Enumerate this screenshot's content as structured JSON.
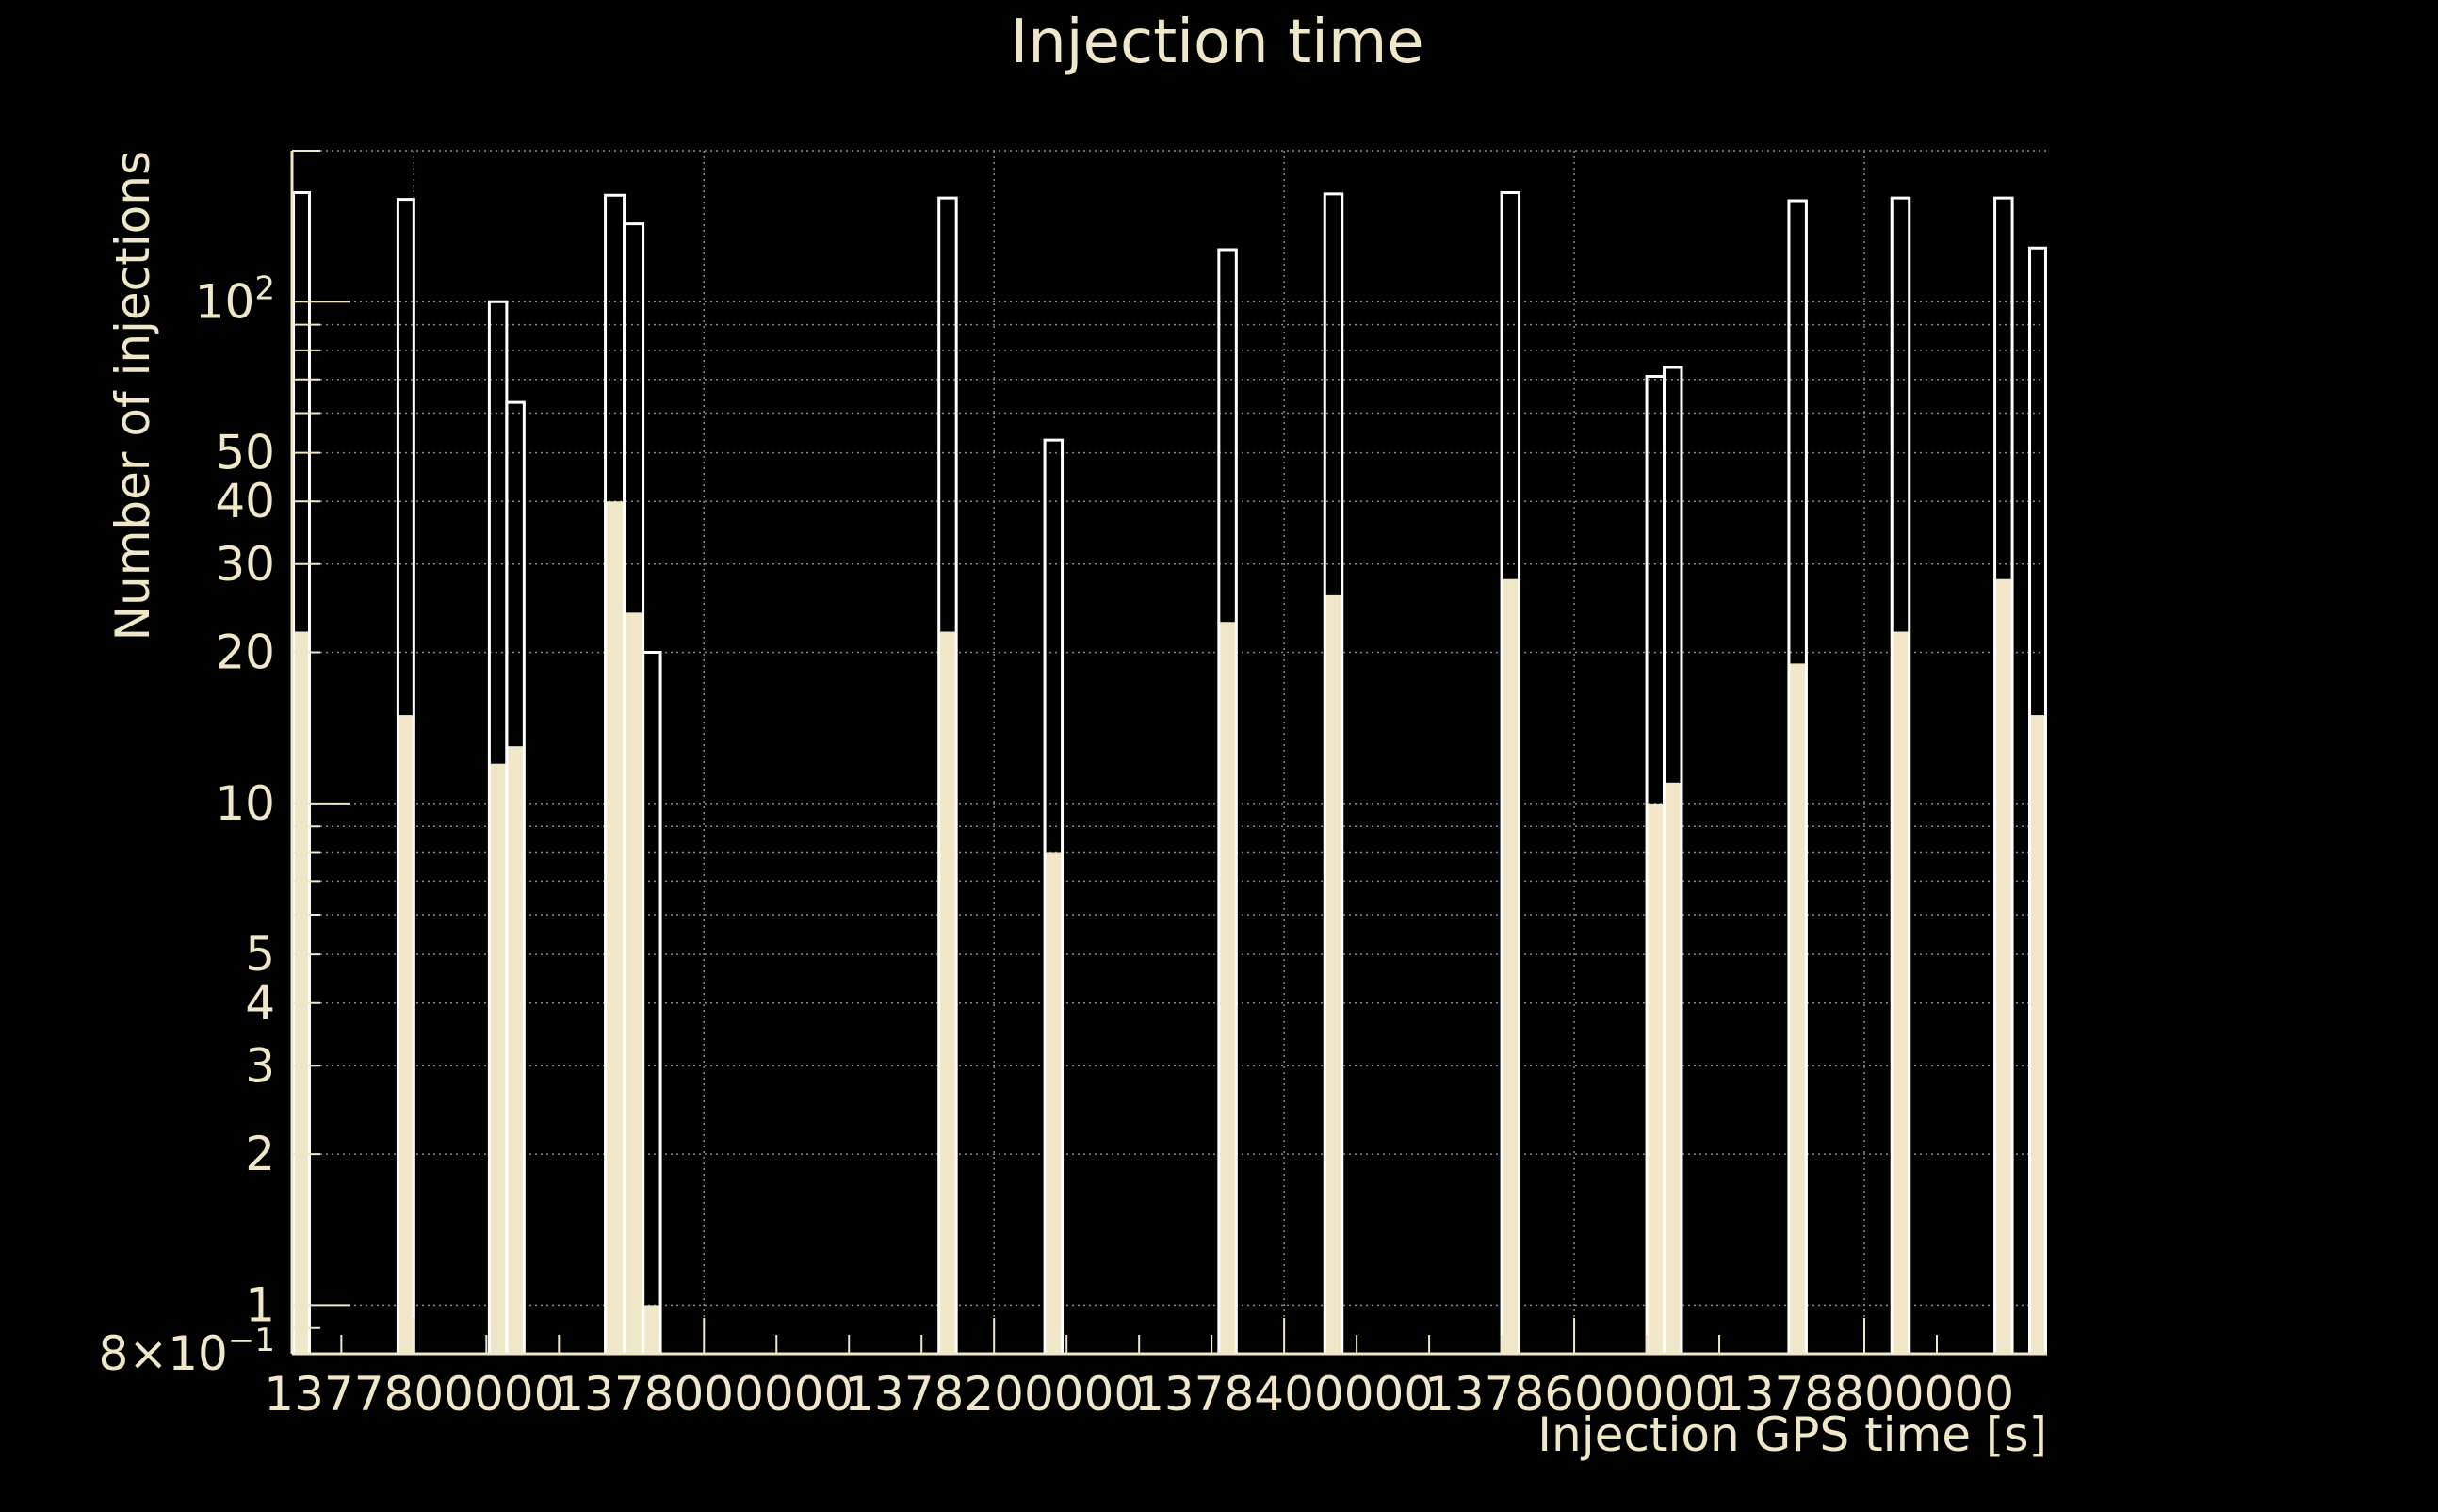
{
  "colors": {
    "background": "#000000",
    "foreground": "#f0e6c8",
    "grid": "#8a8a8a"
  },
  "chart_data": {
    "type": "bar",
    "title": "Injection time",
    "xlabel": "Injection GPS time [s]",
    "ylabel": "Number of injections",
    "yscale": "log",
    "xlim": [
      1377716000,
      1378926000
    ],
    "ylim": [
      0.8,
      200
    ],
    "grid": true,
    "x_ticks": [
      {
        "value": 1377800000,
        "label": "1377800000"
      },
      {
        "value": 1378000000,
        "label": "1378000000"
      },
      {
        "value": 1378200000,
        "label": "1378200000"
      },
      {
        "value": 1378400000,
        "label": "1378400000"
      },
      {
        "value": 1378600000,
        "label": "1378600000"
      },
      {
        "value": 1378800000,
        "label": "1378800000"
      }
    ],
    "y_ticks": [
      {
        "value": 0.8,
        "base": "8×10",
        "exp": "−1"
      },
      {
        "value": 1,
        "base": "1",
        "exp": ""
      },
      {
        "value": 2,
        "base": "2",
        "exp": ""
      },
      {
        "value": 3,
        "base": "3",
        "exp": ""
      },
      {
        "value": 4,
        "base": "4",
        "exp": ""
      },
      {
        "value": 5,
        "base": "5",
        "exp": ""
      },
      {
        "value": 10,
        "base": "10",
        "exp": ""
      },
      {
        "value": 20,
        "base": "20",
        "exp": ""
      },
      {
        "value": 30,
        "base": "30",
        "exp": ""
      },
      {
        "value": 40,
        "base": "40",
        "exp": ""
      },
      {
        "value": 50,
        "base": "50",
        "exp": ""
      },
      {
        "value": 100,
        "base": "10",
        "exp": "2"
      }
    ],
    "series": [
      {
        "style": "outline",
        "bins": [
          {
            "x0": 1377717000,
            "x1": 1377728000,
            "y": 165
          },
          {
            "x0": 1377789000,
            "x1": 1377800000,
            "y": 160
          },
          {
            "x0": 1377852000,
            "x1": 1377864000,
            "y": 100
          },
          {
            "x0": 1377864000,
            "x1": 1377876000,
            "y": 63
          },
          {
            "x0": 1377932000,
            "x1": 1377945000,
            "y": 163
          },
          {
            "x0": 1377945000,
            "x1": 1377958000,
            "y": 143
          },
          {
            "x0": 1377958000,
            "x1": 1377970000,
            "y": 20
          },
          {
            "x0": 1378162000,
            "x1": 1378174000,
            "y": 161
          },
          {
            "x0": 1378235000,
            "x1": 1378247000,
            "y": 53
          },
          {
            "x0": 1378355000,
            "x1": 1378367000,
            "y": 127
          },
          {
            "x0": 1378428000,
            "x1": 1378440000,
            "y": 164
          },
          {
            "x0": 1378550000,
            "x1": 1378562000,
            "y": 165
          },
          {
            "x0": 1378650000,
            "x1": 1378662000,
            "y": 71
          },
          {
            "x0": 1378662000,
            "x1": 1378674000,
            "y": 74
          },
          {
            "x0": 1378748000,
            "x1": 1378760000,
            "y": 159
          },
          {
            "x0": 1378819000,
            "x1": 1378831000,
            "y": 161
          },
          {
            "x0": 1378890000,
            "x1": 1378902000,
            "y": 161
          },
          {
            "x0": 1378914000,
            "x1": 1378925000,
            "y": 128
          }
        ]
      },
      {
        "style": "filled",
        "bins": [
          {
            "x0": 1377717000,
            "x1": 1377728000,
            "y": 22
          },
          {
            "x0": 1377789000,
            "x1": 1377800000,
            "y": 15
          },
          {
            "x0": 1377852000,
            "x1": 1377864000,
            "y": 12
          },
          {
            "x0": 1377864000,
            "x1": 1377876000,
            "y": 13
          },
          {
            "x0": 1377932000,
            "x1": 1377945000,
            "y": 40
          },
          {
            "x0": 1377945000,
            "x1": 1377958000,
            "y": 24
          },
          {
            "x0": 1377958000,
            "x1": 1377970000,
            "y": 1
          },
          {
            "x0": 1378162000,
            "x1": 1378174000,
            "y": 22
          },
          {
            "x0": 1378235000,
            "x1": 1378247000,
            "y": 8
          },
          {
            "x0": 1378355000,
            "x1": 1378367000,
            "y": 23
          },
          {
            "x0": 1378428000,
            "x1": 1378440000,
            "y": 26
          },
          {
            "x0": 1378550000,
            "x1": 1378562000,
            "y": 28
          },
          {
            "x0": 1378650000,
            "x1": 1378662000,
            "y": 10
          },
          {
            "x0": 1378662000,
            "x1": 1378674000,
            "y": 11
          },
          {
            "x0": 1378748000,
            "x1": 1378760000,
            "y": 19
          },
          {
            "x0": 1378819000,
            "x1": 1378831000,
            "y": 22
          },
          {
            "x0": 1378890000,
            "x1": 1378902000,
            "y": 28
          },
          {
            "x0": 1378914000,
            "x1": 1378925000,
            "y": 15
          }
        ]
      }
    ]
  }
}
